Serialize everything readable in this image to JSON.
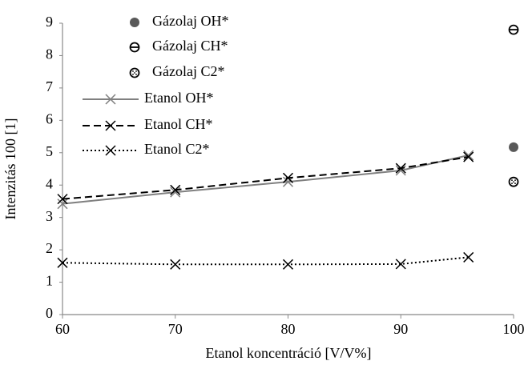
{
  "chart_data": {
    "type": "line",
    "x_label": "Etanol koncentráció [V/V%]",
    "y_label": "Intenzitás 100 [1]",
    "xlim": [
      60,
      100
    ],
    "xticks": [
      60,
      70,
      80,
      90,
      100
    ],
    "ylim": [
      0,
      9
    ],
    "yticks": [
      0,
      1,
      2,
      3,
      4,
      5,
      6,
      7,
      8,
      9
    ],
    "grid": false,
    "legend": "upper left",
    "series": [
      {
        "name": "Gázolaj OH*",
        "color": "#595959",
        "marker": "circle",
        "line": "none",
        "x": [
          100
        ],
        "values": [
          5.17
        ]
      },
      {
        "name": "Gázolaj CH*",
        "color": "#000000",
        "marker": "circle-hline",
        "line": "none",
        "x": [
          100
        ],
        "values": [
          8.8
        ]
      },
      {
        "name": "Gázolaj C2*",
        "color": "#000000",
        "marker": "circle-dotted",
        "line": "none",
        "x": [
          100
        ],
        "values": [
          4.1
        ]
      },
      {
        "name": "Etanol OH*",
        "color": "#808080",
        "marker": "x",
        "line": "solid",
        "x": [
          60,
          70,
          80,
          90,
          96
        ],
        "values": [
          3.42,
          3.78,
          4.1,
          4.45,
          4.92
        ]
      },
      {
        "name": "Etanol CH*",
        "color": "#000000",
        "marker": "x",
        "line": "dashed",
        "x": [
          60,
          70,
          80,
          90,
          96
        ],
        "values": [
          3.57,
          3.85,
          4.22,
          4.52,
          4.87
        ]
      },
      {
        "name": "Etanol C2*",
        "color": "#000000",
        "marker": "x",
        "line": "dotted",
        "x": [
          60,
          70,
          80,
          90,
          96
        ],
        "values": [
          1.6,
          1.55,
          1.55,
          1.56,
          1.77
        ]
      }
    ]
  }
}
